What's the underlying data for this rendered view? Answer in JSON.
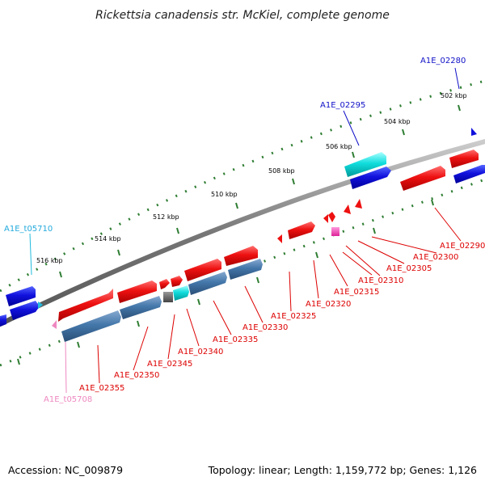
{
  "title": "Rickettsia canadensis str. McKiel, complete genome",
  "footer": {
    "accession": "Accession: NC_009879",
    "stats": "Topology: linear; Length: 1,159,772 bp; Genes: 1,126"
  },
  "ticks": [
    "502 kbp",
    "504 kbp",
    "506 kbp",
    "508 kbp",
    "510 kbp",
    "512 kbp",
    "514 kbp",
    "516 kbp"
  ],
  "colors": {
    "backbone": "#777777",
    "tick_dots": "#2e7d32",
    "plus_strand_label": "#1010c8",
    "minus_strand_label": "#dd0000",
    "trna_plus_label": "#22aadd",
    "trna_minus_label": "#ee88c0",
    "gene_red": "#ee1111",
    "gene_blue": "#1111dd",
    "gene_steel": "#4477aa",
    "gene_cyan": "#11dddd"
  },
  "labels": {
    "A1E_02280": "A1E_02280",
    "A1E_02295": "A1E_02295",
    "A1E_t05710": "A1E_t05710",
    "A1E_02290": "A1E_02290",
    "A1E_02300": "A1E_02300",
    "A1E_02305": "A1E_02305",
    "A1E_02310": "A1E_02310",
    "A1E_02315": "A1E_02315",
    "A1E_02320": "A1E_02320",
    "A1E_02325": "A1E_02325",
    "A1E_02330": "A1E_02330",
    "A1E_02335": "A1E_02335",
    "A1E_02340": "A1E_02340",
    "A1E_02345": "A1E_02345",
    "A1E_02350": "A1E_02350",
    "A1E_02355": "A1E_02355",
    "A1E_t05708": "A1E_t05708"
  }
}
